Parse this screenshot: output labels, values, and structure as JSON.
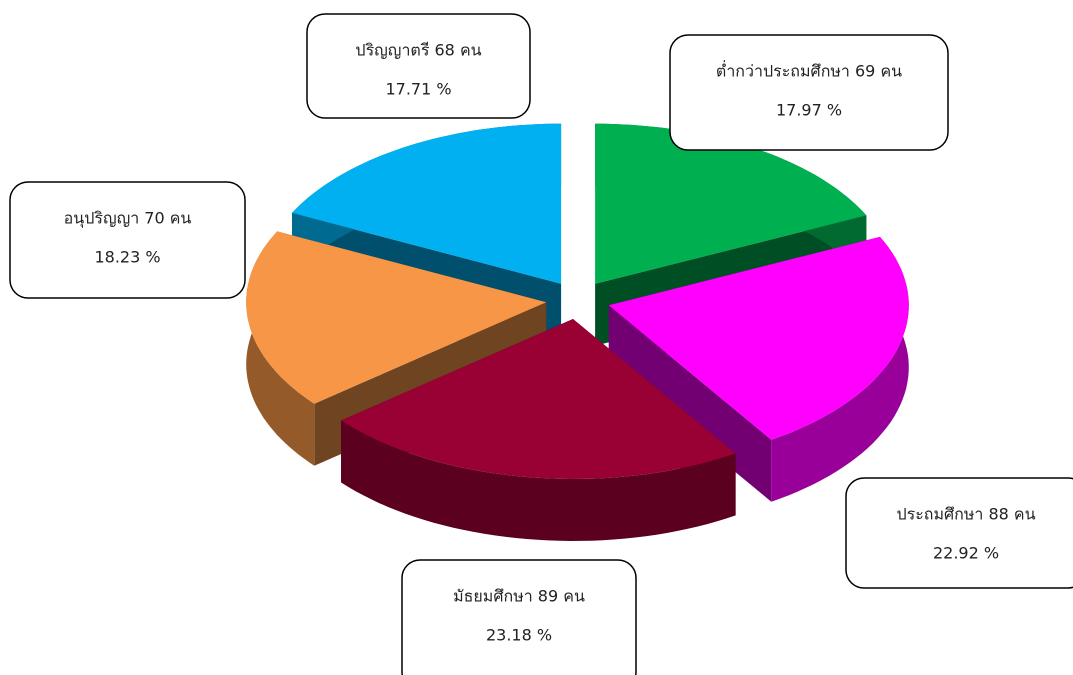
{
  "chart_data": {
    "type": "pie3d",
    "categories": [
      "ต่ำกว่าประถมศึกษา 69 คน",
      "ประถมศึกษา 88 คน",
      "มัธยมศึกษา 89 คน",
      "อนุปริญญา 70 คน",
      "ปริญญาตรี 68 คน"
    ],
    "values": [
      17.97,
      22.92,
      23.18,
      18.23,
      17.71
    ],
    "value_labels": [
      "17.97 %",
      "22.92 %",
      "23.18 %",
      "18.23 %",
      "17.71 %"
    ],
    "colors": [
      "#00b050",
      "#ff00ff",
      "#990033",
      "#f79646",
      "#00b0f0"
    ]
  }
}
